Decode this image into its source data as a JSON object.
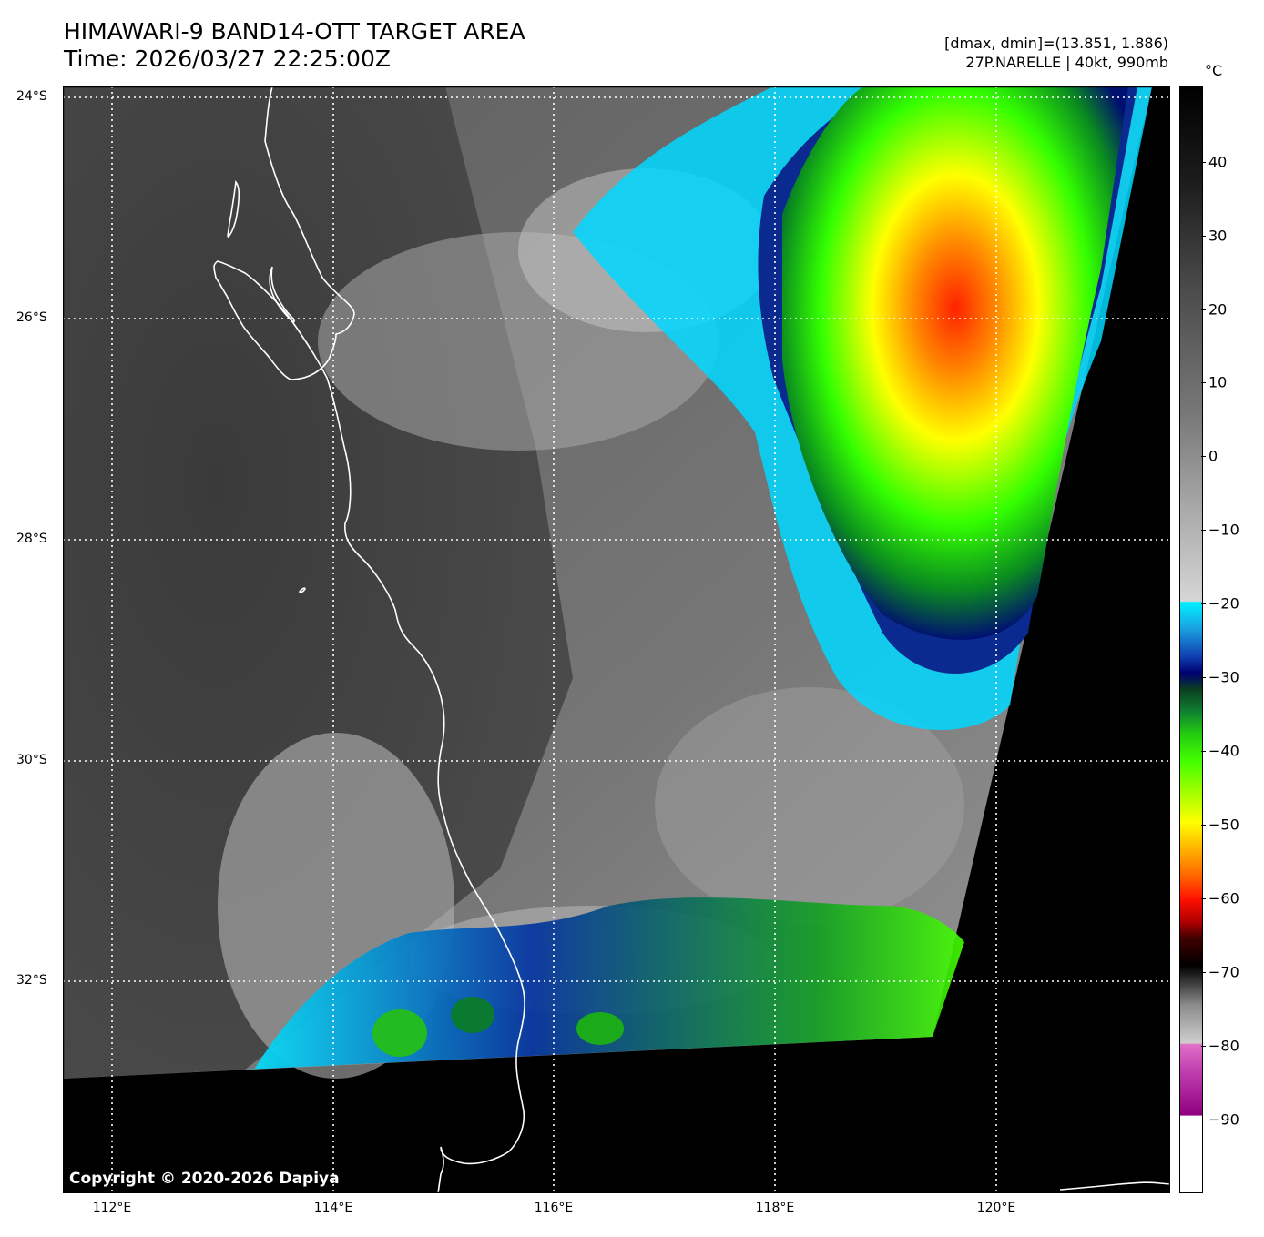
{
  "header": {
    "title_line1": "HIMAWARI-9 BAND14-OTT TARGET AREA",
    "title_line2": "Time: 2026/03/27 22:25:00Z",
    "info_line1": "[dmax, dmin]=(13.851, 1.886)",
    "info_line2": "27P.NARELLE | 40kt, 990mb"
  },
  "map": {
    "lat_labels": [
      "24°S",
      "26°S",
      "28°S",
      "30°S",
      "32°S"
    ],
    "lon_labels": [
      "112°E",
      "114°E",
      "116°E",
      "118°E",
      "120°E"
    ],
    "copyright": "Copyright © 2020-2026 Dapiya",
    "colors": {
      "no_data": "#000000",
      "coastline": "#ffffff",
      "gridline": "#ffffff"
    }
  },
  "colorbar": {
    "unit": "°C",
    "ticks": [
      "40",
      "30",
      "20",
      "10",
      "0",
      "−10",
      "−20",
      "−30",
      "−40",
      "−50",
      "−60",
      "−70",
      "−80",
      "−90"
    ],
    "range": [
      -100,
      50
    ]
  }
}
